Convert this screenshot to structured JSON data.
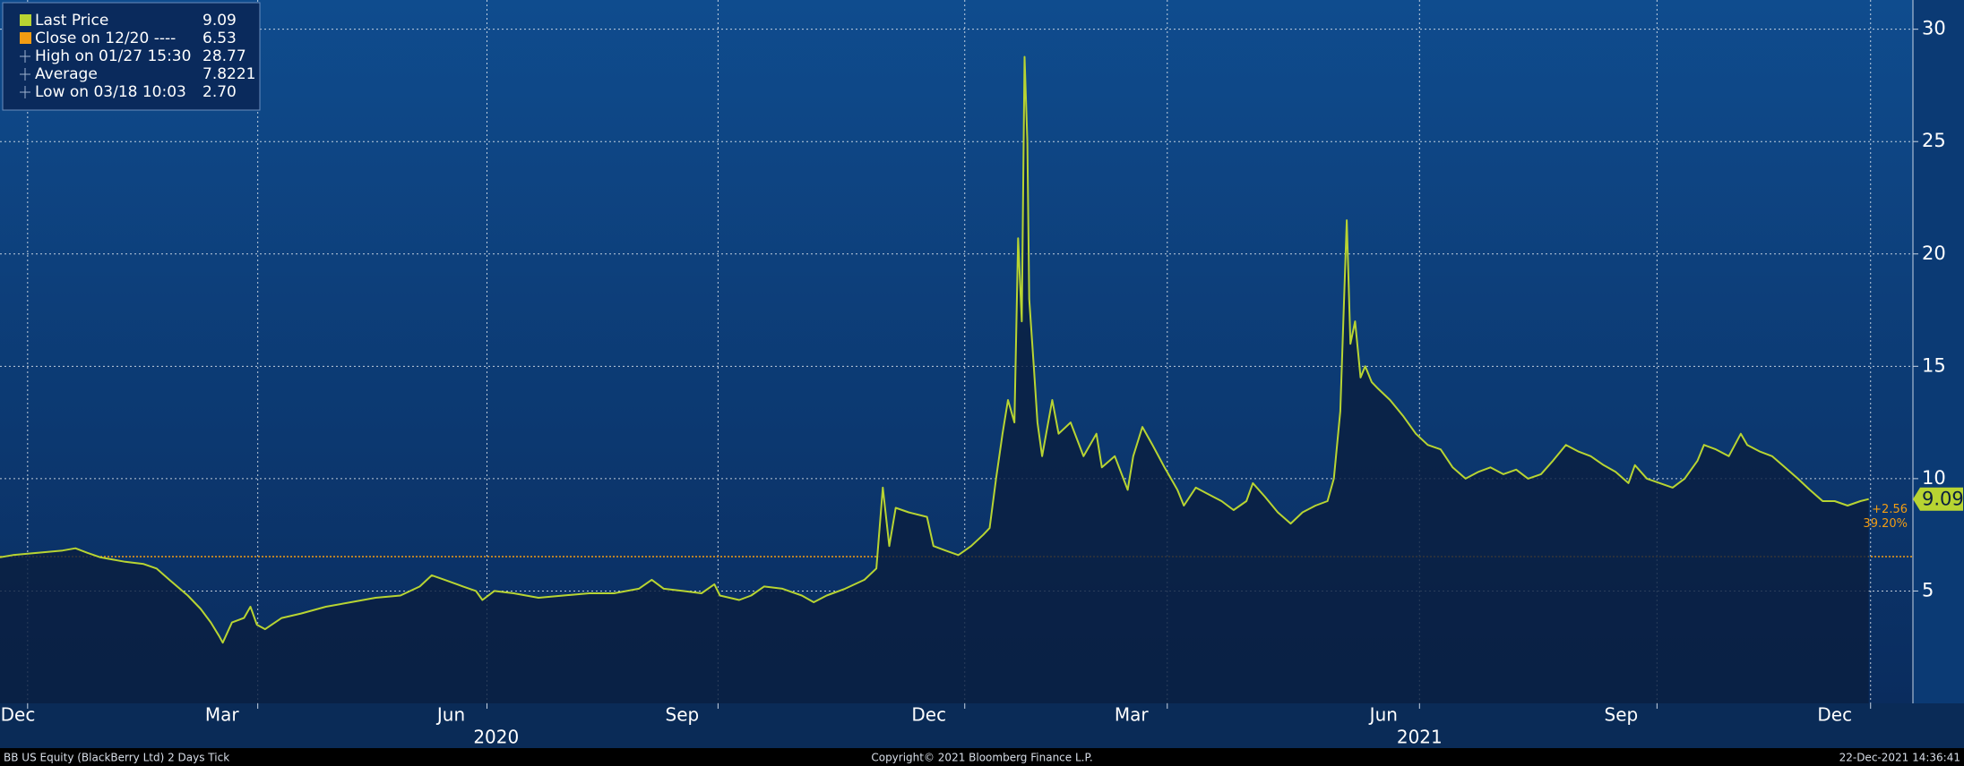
{
  "chart_data": {
    "type": "line",
    "series": [
      {
        "name": "Last Price",
        "color": "#b8d432",
        "values": [
          6.5,
          6.6,
          6.7,
          6.8,
          6.9,
          6.7,
          6.5,
          6.3,
          6.2,
          6.0,
          5.5,
          4.8,
          4.2,
          3.6,
          3.0,
          2.7,
          3.6,
          3.8,
          4.3,
          3.5,
          3.3,
          3.8,
          4.0,
          4.3,
          4.5,
          4.7,
          4.8,
          5.2,
          5.7,
          5.5,
          5.2,
          5.0,
          4.6,
          5.0,
          4.9,
          4.7,
          4.8,
          4.9,
          4.9,
          5.1,
          5.5,
          5.1,
          5.0,
          4.9,
          5.3,
          4.8,
          4.6,
          4.8,
          5.2,
          5.1,
          4.8,
          4.5,
          4.8,
          5.1,
          5.5,
          6.0,
          9.6,
          7.0,
          8.7,
          8.5,
          8.3,
          7.0,
          6.8,
          6.6,
          7.0,
          7.5,
          7.8,
          10.0,
          12.0,
          13.5,
          12.5,
          20.7,
          17.0,
          28.77,
          25.0,
          18.0,
          15.0,
          12.5,
          11.0,
          13.5,
          12.0,
          12.5,
          11.0,
          12.0,
          10.5,
          11.0,
          9.5,
          11.0,
          12.3,
          11.5,
          10.5,
          9.5,
          8.8,
          9.6,
          9.3,
          9.0,
          8.6,
          9.0,
          9.8,
          9.2,
          8.5,
          8.0,
          8.5,
          8.8,
          9.0,
          10.0,
          13.0,
          21.5,
          16.0,
          17.0,
          14.5,
          15.0,
          14.3,
          14.0,
          13.5,
          12.8,
          12.0,
          11.5,
          11.3,
          10.5,
          10.0,
          10.3,
          10.5,
          10.2,
          10.4,
          10.0,
          10.2,
          10.8,
          11.5,
          11.2,
          11.0,
          10.6,
          10.3,
          9.8,
          10.6,
          10.0,
          9.8,
          9.6,
          10.0,
          10.8,
          11.5,
          11.3,
          11.0,
          12.0,
          11.5,
          11.2,
          11.0,
          10.5,
          10.0,
          9.5,
          9.0,
          9.0,
          8.8,
          9.0,
          9.09
        ]
      }
    ],
    "x": [
      2019.885,
      2019.899,
      2019.926,
      2019.953,
      2019.967,
      2019.98,
      2019.994,
      2020.021,
      2020.041,
      2020.055,
      2020.069,
      2020.089,
      2020.103,
      2020.114,
      2020.123,
      2020.127,
      2020.137,
      2020.15,
      2020.157,
      2020.164,
      2020.173,
      2020.191,
      2020.212,
      2020.239,
      2020.266,
      2020.293,
      2020.32,
      2020.341,
      2020.354,
      2020.368,
      2020.388,
      2020.402,
      2020.409,
      2020.422,
      2020.443,
      2020.47,
      2020.497,
      2020.525,
      2020.552,
      2020.579,
      2020.593,
      2020.606,
      2020.627,
      2020.647,
      2020.661,
      2020.667,
      2020.688,
      2020.701,
      2020.715,
      2020.735,
      2020.756,
      2020.769,
      2020.783,
      2020.803,
      2020.824,
      2020.837,
      2020.844,
      2020.851,
      2020.858,
      2020.872,
      2020.892,
      2020.899,
      2020.912,
      2020.926,
      2020.94,
      2020.953,
      2020.96,
      2020.967,
      2020.974,
      2020.98,
      2020.987,
      2020.991,
      2020.995,
      2020.998,
      2021.001,
      2021.003,
      2021.008,
      2021.012,
      2021.017,
      2021.028,
      2021.035,
      2021.048,
      2021.062,
      2021.076,
      2021.082,
      2021.096,
      2021.11,
      2021.116,
      2021.126,
      2021.137,
      2021.15,
      2021.164,
      2021.171,
      2021.184,
      2021.198,
      2021.212,
      2021.225,
      2021.239,
      2021.246,
      2021.259,
      2021.273,
      2021.287,
      2021.3,
      2021.314,
      2021.327,
      2021.334,
      2021.341,
      2021.348,
      2021.352,
      2021.357,
      2021.363,
      2021.368,
      2021.375,
      2021.382,
      2021.395,
      2021.409,
      2021.423,
      2021.436,
      2021.45,
      2021.463,
      2021.477,
      2021.491,
      2021.504,
      2021.518,
      2021.532,
      2021.545,
      2021.559,
      2021.572,
      2021.586,
      2021.6,
      2021.613,
      2021.627,
      2021.64,
      2021.654,
      2021.661,
      2021.674,
      2021.688,
      2021.702,
      2021.715,
      2021.729,
      2021.736,
      2021.749,
      2021.763,
      2021.776,
      2021.783,
      2021.797,
      2021.81,
      2021.824,
      2021.838,
      2021.851,
      2021.865,
      2021.878,
      2021.892,
      2021.906,
      2021.915
    ],
    "xlim": [
      2019.885,
      2021.963
    ],
    "xticks": [
      {
        "value": 2019.915,
        "label": "Dec"
      },
      {
        "value": 2020.165,
        "label": "Mar"
      },
      {
        "value": 2020.414,
        "label": "Jun"
      },
      {
        "value": 2020.665,
        "label": "Sep"
      },
      {
        "value": 2020.933,
        "label": "Dec"
      },
      {
        "value": 2021.153,
        "label": "Mar"
      },
      {
        "value": 2021.427,
        "label": "Jun"
      },
      {
        "value": 2021.685,
        "label": "Sep"
      },
      {
        "value": 2021.917,
        "label": "Dec"
      }
    ],
    "year_ticks": [
      {
        "value": 2020.424,
        "label": "2020"
      },
      {
        "value": 2021.427,
        "label": "2021"
      }
    ],
    "ylim": [
      0,
      31.3
    ],
    "yticks": [
      5,
      10,
      15,
      20,
      25,
      30
    ],
    "grid": true,
    "reference_line": {
      "name": "Close on 12/20 ----",
      "value": 6.53,
      "color": "#f39c12"
    },
    "stats": [
      {
        "name": "High on 01/27 15:30",
        "value": 28.77
      },
      {
        "name": "Average",
        "value": 7.8221
      },
      {
        "name": "Low on 03/18 10:03",
        "value": 2.7,
        "value_label": "2.70"
      }
    ],
    "change": [
      {
        "value": 2.56,
        "label": "+2.56"
      },
      {
        "value": 39.2,
        "label": "39.20%"
      }
    ],
    "footer_left": "BB US Equity (BlackBerry Ltd) 2 Days  Tick",
    "footer_center": "Copyright© 2021 Bloomberg Finance L.P.",
    "footer_right": "22-Dec-2021 14:36:41"
  }
}
